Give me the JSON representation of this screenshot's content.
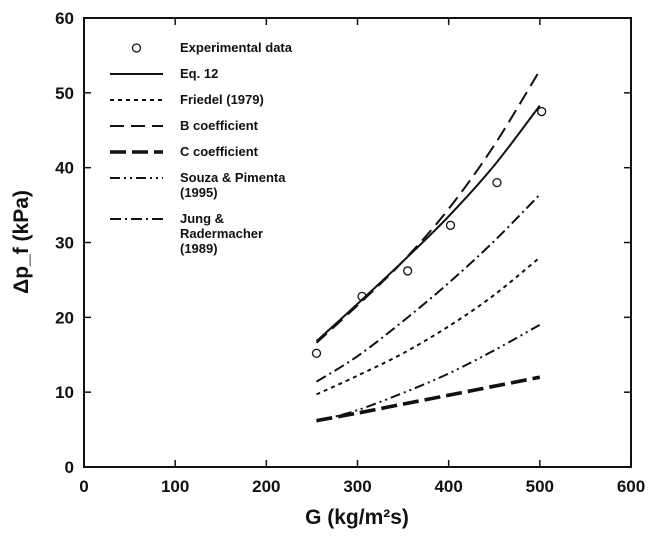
{
  "chart_data": {
    "type": "line",
    "title": "",
    "xlabel": "G (kg/m²s)",
    "ylabel": "Δp_f (kPa)",
    "xlim": [
      0,
      600
    ],
    "ylim": [
      0,
      60
    ],
    "x_ticks": [
      "0",
      "100",
      "200",
      "300",
      "400",
      "500",
      "600"
    ],
    "y_ticks": [
      "0",
      "10",
      "20",
      "30",
      "40",
      "50",
      "60"
    ],
    "grid": false,
    "legend_position": "top-left, inside plot",
    "series": [
      {
        "name": "Experimental data",
        "style": "markers-open-circle",
        "x": [
          255,
          305,
          355,
          402,
          453,
          502
        ],
        "y": [
          15.2,
          22.8,
          26.2,
          32.3,
          38.0,
          47.5
        ]
      },
      {
        "name": "Eq. 12",
        "style": "solid",
        "x": [
          255,
          300,
          350,
          400,
          450,
          500
        ],
        "y": [
          16.8,
          21.8,
          27.5,
          33.5,
          40.3,
          48.3
        ]
      },
      {
        "name": "Friedel (1979)",
        "style": "short-dash",
        "x": [
          255,
          300,
          350,
          400,
          450,
          500
        ],
        "y": [
          9.7,
          12.2,
          15.2,
          18.8,
          23.0,
          28.0
        ]
      },
      {
        "name": "B coefficient",
        "style": "long-dash",
        "x": [
          255,
          300,
          350,
          400,
          450,
          500
        ],
        "y": [
          16.6,
          21.6,
          27.5,
          34.5,
          43.0,
          53.0
        ]
      },
      {
        "name": "C coefficient",
        "style": "heavy-long-dash",
        "x": [
          255,
          300,
          350,
          400,
          450,
          500
        ],
        "y": [
          6.2,
          7.2,
          8.4,
          9.6,
          10.8,
          12.0
        ]
      },
      {
        "name": "Souza & Pimenta\n(1995)",
        "style": "dash-dot-dot",
        "x": [
          255,
          300,
          350,
          400,
          450,
          500
        ],
        "y": [
          6.1,
          7.6,
          9.9,
          12.5,
          15.6,
          19.0
        ]
      },
      {
        "name": "Jung &\nRadermacher\n(1989)",
        "style": "dash-dot",
        "x": [
          255,
          300,
          350,
          400,
          450,
          500
        ],
        "y": [
          11.4,
          14.8,
          19.5,
          24.6,
          30.2,
          36.4
        ]
      }
    ]
  }
}
